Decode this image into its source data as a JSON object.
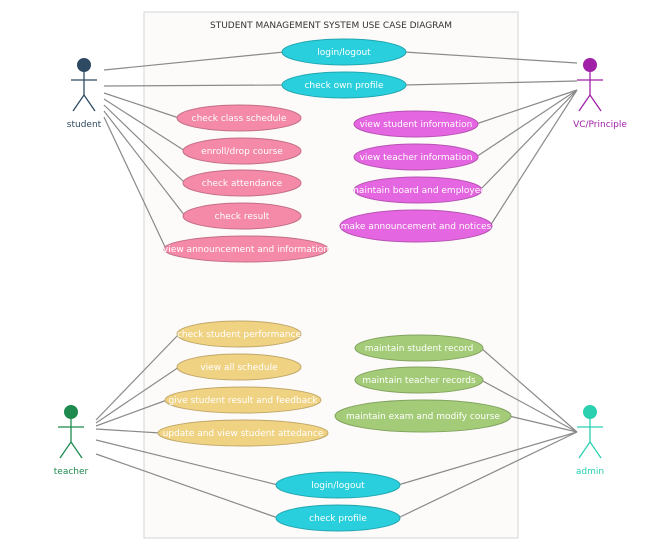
{
  "title": "STUDENT MANAGEMENT SYSTEM USE CASE DIAGRAM",
  "colors": {
    "cyan": "#29cfdc",
    "pink": "#f489a8",
    "magenta": "#e466e0",
    "yellow": "#f0d283",
    "green": "#a4cc78",
    "student": "#2e4a62",
    "vc": "#a020a8",
    "teacher": "#1e8a4e",
    "admin": "#2ad0b0"
  },
  "actors": [
    {
      "id": "student",
      "label": "student"
    },
    {
      "id": "vc",
      "label": "VC/Principle"
    },
    {
      "id": "teacher",
      "label": "teacher"
    },
    {
      "id": "admin",
      "label": "admin"
    }
  ],
  "usecases": [
    {
      "id": "uc1",
      "label": "login/logout",
      "color": "cyan"
    },
    {
      "id": "uc2",
      "label": "check own profile",
      "color": "cyan"
    },
    {
      "id": "uc3",
      "label": "check class schedule",
      "color": "pink"
    },
    {
      "id": "uc4",
      "label": "enroll/drop course",
      "color": "pink"
    },
    {
      "id": "uc5",
      "label": "check attendance",
      "color": "pink"
    },
    {
      "id": "uc6",
      "label": "check result",
      "color": "pink"
    },
    {
      "id": "uc7",
      "label": "view announcement and information",
      "color": "pink"
    },
    {
      "id": "uc8",
      "label": "view student information",
      "color": "magenta"
    },
    {
      "id": "uc9",
      "label": "view teacher information",
      "color": "magenta"
    },
    {
      "id": "uc10",
      "label": "maintain board and employee",
      "color": "magenta"
    },
    {
      "id": "uc11",
      "label": "make announcement and notices",
      "color": "magenta"
    },
    {
      "id": "uc12",
      "label": "check student performance",
      "color": "yellow"
    },
    {
      "id": "uc13",
      "label": "view all schedule",
      "color": "yellow"
    },
    {
      "id": "uc14",
      "label": "give student result and feedback",
      "color": "yellow"
    },
    {
      "id": "uc15",
      "label": "update and view student attedance",
      "color": "yellow"
    },
    {
      "id": "uc16",
      "label": "maintain student record",
      "color": "green"
    },
    {
      "id": "uc17",
      "label": "maintain teacher records",
      "color": "green"
    },
    {
      "id": "uc18",
      "label": "maintain exam and modify course",
      "color": "green"
    },
    {
      "id": "uc19",
      "label": "login/logout",
      "color": "cyan"
    },
    {
      "id": "uc20",
      "label": "check profile",
      "color": "cyan"
    }
  ],
  "associations": [
    [
      "student",
      "uc1"
    ],
    [
      "student",
      "uc2"
    ],
    [
      "student",
      "uc3"
    ],
    [
      "student",
      "uc4"
    ],
    [
      "student",
      "uc5"
    ],
    [
      "student",
      "uc6"
    ],
    [
      "student",
      "uc7"
    ],
    [
      "vc",
      "uc1"
    ],
    [
      "vc",
      "uc2"
    ],
    [
      "vc",
      "uc8"
    ],
    [
      "vc",
      "uc9"
    ],
    [
      "vc",
      "uc10"
    ],
    [
      "vc",
      "uc11"
    ],
    [
      "teacher",
      "uc12"
    ],
    [
      "teacher",
      "uc13"
    ],
    [
      "teacher",
      "uc14"
    ],
    [
      "teacher",
      "uc15"
    ],
    [
      "teacher",
      "uc19"
    ],
    [
      "teacher",
      "uc20"
    ],
    [
      "admin",
      "uc16"
    ],
    [
      "admin",
      "uc17"
    ],
    [
      "admin",
      "uc18"
    ],
    [
      "admin",
      "uc19"
    ],
    [
      "admin",
      "uc20"
    ]
  ]
}
